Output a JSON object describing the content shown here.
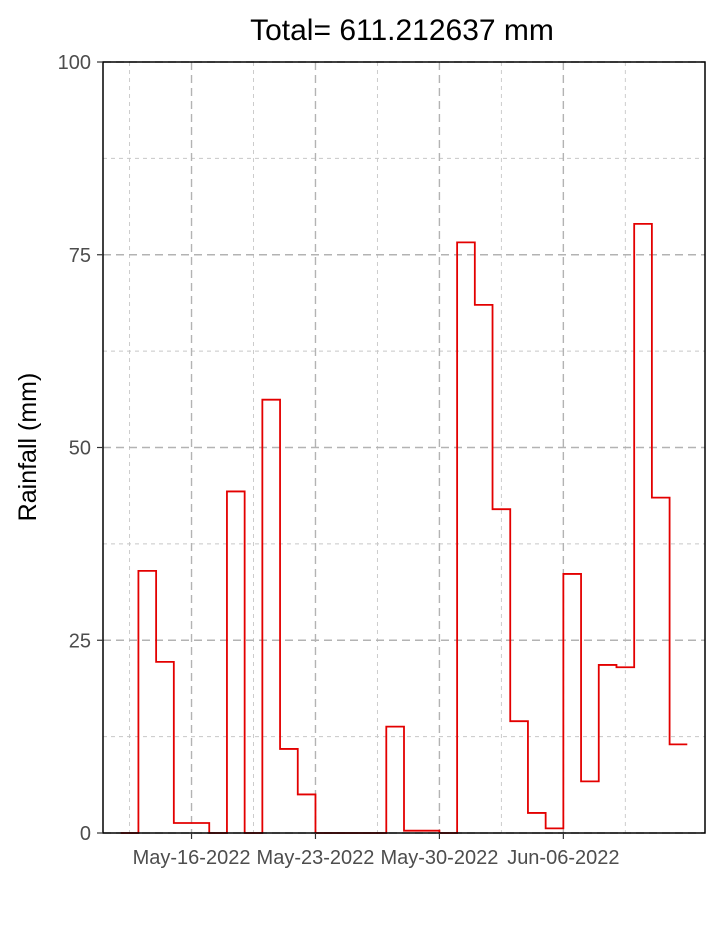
{
  "chart_data": {
    "type": "line",
    "style": "step",
    "title": "Total= 611.212637 mm",
    "xlabel": "",
    "ylabel": "Rainfall (mm)",
    "ylim": [
      0,
      100
    ],
    "yticks": [
      0,
      25,
      50,
      75,
      100
    ],
    "ytick_labels": [
      "0",
      "25",
      "50",
      "75",
      "100"
    ],
    "xlim": [
      "2022-05-11",
      "2022-06-14"
    ],
    "xticks": [
      "2022-05-16",
      "2022-05-23",
      "2022-05-30",
      "2022-06-06"
    ],
    "xtick_labels": [
      "May-16-2022",
      "May-23-2022",
      "May-30-2022",
      "Jun-06-2022"
    ],
    "grid": true,
    "series_color": "#e30000",
    "x": [
      "2022-05-12",
      "2022-05-13",
      "2022-05-14",
      "2022-05-15",
      "2022-05-16",
      "2022-05-17",
      "2022-05-18",
      "2022-05-19",
      "2022-05-20",
      "2022-05-21",
      "2022-05-22",
      "2022-05-23",
      "2022-05-24",
      "2022-05-25",
      "2022-05-26",
      "2022-05-27",
      "2022-05-28",
      "2022-05-29",
      "2022-05-30",
      "2022-05-31",
      "2022-06-01",
      "2022-06-02",
      "2022-06-03",
      "2022-06-04",
      "2022-06-05",
      "2022-06-06",
      "2022-06-07",
      "2022-06-08",
      "2022-06-09",
      "2022-06-10",
      "2022-06-11",
      "2022-06-12",
      "2022-06-13"
    ],
    "y": [
      0,
      34,
      22.2,
      1.3,
      1.3,
      0,
      44.3,
      0,
      56.2,
      10.9,
      5,
      0,
      0,
      0,
      0,
      13.8,
      0.3,
      0.3,
      0,
      76.6,
      68.5,
      42,
      14.5,
      2.6,
      0.6,
      33.6,
      6.7,
      21.8,
      21.5,
      79,
      43.5,
      11.5,
      null
    ]
  }
}
